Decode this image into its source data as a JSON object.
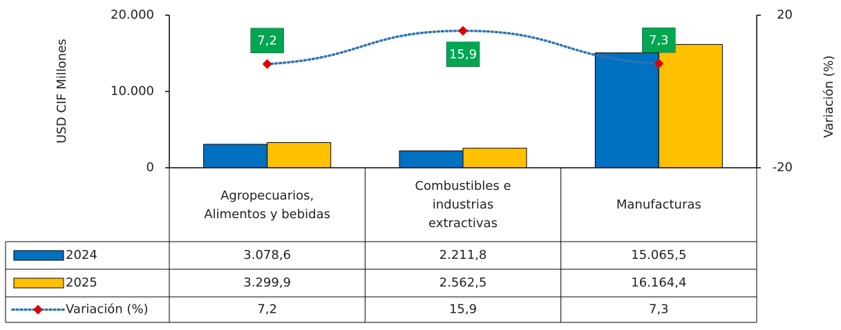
{
  "chart_data": {
    "type": "bar",
    "y_label": "USD CIF Millones",
    "y2_label": "Variación (%)",
    "categories": [
      "Agropecuarios, Alimentos y bebidas",
      "Combustibles e industrias extractivas",
      "Manufacturas"
    ],
    "series": [
      {
        "name": "2024",
        "color": "#0070c0",
        "values": [
          3078.6,
          2211.8,
          15065.5
        ],
        "value_labels": [
          "3.078,6",
          "2.211,8",
          "15.065,5"
        ]
      },
      {
        "name": "2025",
        "color": "#ffc000",
        "values": [
          3299.9,
          2562.5,
          16164.4
        ],
        "value_labels": [
          "3.299,9",
          "2.562,5",
          "16.164,4"
        ]
      },
      {
        "name": "Variación (%)",
        "type": "line",
        "axis": "y2",
        "color": "#2e75b6",
        "marker_color": "#e00000",
        "label_color": "#00a650",
        "values": [
          7.2,
          15.9,
          7.3
        ],
        "value_labels": [
          "7,2",
          "15,9",
          "7,3"
        ]
      }
    ],
    "ylim": [
      0,
      20000
    ],
    "yticks": [
      {
        "value": 0,
        "label": "0"
      },
      {
        "value": 10000,
        "label": "10.000"
      },
      {
        "value": 20000,
        "label": "20.000"
      }
    ],
    "y2lim": [
      -20,
      20
    ],
    "y2ticks": [
      -20,
      20
    ]
  }
}
